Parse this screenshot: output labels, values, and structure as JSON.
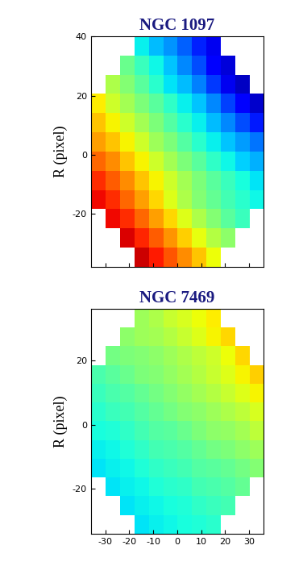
{
  "chart_data": [
    {
      "type": "heatmap",
      "title": "NGC 1097",
      "y_label": "R (pixel)",
      "xlim": [
        -36,
        36
      ],
      "ylim": [
        -38,
        40
      ],
      "xticks": [
        -30,
        -20,
        -10,
        0,
        10,
        20,
        30
      ],
      "yticks": [
        -20,
        0,
        20,
        40
      ],
      "tick_labels": "y",
      "color_range": [
        0,
        10
      ],
      "cells": [
        [
          null,
          null,
          null,
          3.6,
          3.1,
          2.7,
          2.2,
          1.6,
          1.0,
          null,
          null,
          null
        ],
        [
          null,
          null,
          4.8,
          4.2,
          3.7,
          3.2,
          2.6,
          2.0,
          1.2,
          0.8,
          null,
          null
        ],
        [
          null,
          5.6,
          5.1,
          4.6,
          4.0,
          3.5,
          3.1,
          2.5,
          1.8,
          1.0,
          0.6,
          null
        ],
        [
          6.6,
          6.0,
          5.5,
          5.0,
          4.6,
          4.1,
          3.6,
          3.2,
          2.6,
          1.9,
          1.2,
          0.7
        ],
        [
          7.0,
          6.5,
          6.0,
          5.5,
          5.0,
          4.5,
          4.0,
          3.6,
          3.1,
          2.6,
          2.0,
          1.5
        ],
        [
          7.4,
          7.0,
          6.5,
          6.0,
          5.4,
          5.0,
          4.5,
          4.0,
          3.6,
          3.2,
          2.8,
          2.4
        ],
        [
          8.0,
          7.6,
          7.0,
          6.5,
          6.0,
          5.5,
          5.0,
          4.6,
          4.1,
          3.7,
          3.3,
          3.0
        ],
        [
          8.6,
          8.1,
          7.6,
          7.0,
          6.5,
          6.0,
          5.5,
          5.0,
          4.6,
          4.2,
          3.8,
          3.5
        ],
        [
          9.0,
          8.6,
          8.0,
          7.4,
          6.8,
          6.2,
          5.6,
          5.1,
          4.7,
          4.3,
          4.0,
          3.7
        ],
        [
          null,
          9.0,
          8.6,
          8.0,
          7.4,
          6.8,
          6.2,
          5.6,
          5.1,
          4.6,
          4.2,
          null
        ],
        [
          null,
          null,
          9.2,
          8.7,
          8.1,
          7.5,
          6.9,
          6.3,
          5.7,
          5.2,
          null,
          null
        ],
        [
          null,
          null,
          null,
          9.3,
          8.8,
          8.2,
          7.6,
          7.0,
          6.4,
          null,
          null,
          null
        ]
      ]
    },
    {
      "type": "heatmap",
      "title": "NGC 7469",
      "y_label": "R (pixel)",
      "xlim": [
        -36,
        36
      ],
      "ylim": [
        -34,
        36
      ],
      "xticks": [
        -30,
        -20,
        -10,
        0,
        10,
        20,
        30
      ],
      "yticks": [
        -20,
        0,
        20
      ],
      "color_range": [
        0,
        10
      ],
      "cells": [
        [
          null,
          null,
          null,
          5.4,
          5.6,
          5.9,
          6.1,
          6.4,
          6.6,
          null,
          null,
          null
        ],
        [
          null,
          null,
          5.2,
          5.4,
          5.5,
          5.7,
          5.9,
          6.2,
          6.5,
          6.8,
          null,
          null
        ],
        [
          null,
          4.9,
          5.0,
          5.1,
          5.2,
          5.4,
          5.6,
          5.8,
          6.0,
          6.4,
          6.8,
          null
        ],
        [
          4.4,
          4.6,
          4.8,
          5.0,
          5.1,
          5.3,
          5.5,
          5.7,
          5.9,
          6.2,
          6.5,
          6.9
        ],
        [
          4.2,
          4.4,
          4.5,
          4.7,
          4.9,
          5.1,
          5.3,
          5.5,
          5.7,
          5.9,
          6.2,
          6.5
        ],
        [
          4.0,
          4.2,
          4.3,
          4.5,
          4.7,
          4.9,
          5.1,
          5.2,
          5.4,
          5.6,
          5.8,
          6.1
        ],
        [
          3.8,
          3.9,
          4.1,
          4.3,
          4.5,
          4.6,
          4.8,
          5.0,
          5.2,
          5.3,
          5.5,
          5.8
        ],
        [
          3.6,
          3.7,
          3.9,
          4.1,
          4.3,
          4.4,
          4.5,
          4.7,
          4.9,
          5.0,
          5.2,
          5.4
        ],
        [
          3.5,
          3.6,
          3.7,
          3.9,
          4.1,
          4.2,
          4.3,
          4.5,
          4.6,
          4.7,
          4.9,
          5.1
        ],
        [
          null,
          3.5,
          3.6,
          3.7,
          3.9,
          4.0,
          4.1,
          4.3,
          4.4,
          4.5,
          4.7,
          null
        ],
        [
          null,
          null,
          3.5,
          3.6,
          3.7,
          3.8,
          3.9,
          4.1,
          4.2,
          4.3,
          null,
          null
        ],
        [
          null,
          null,
          null,
          3.5,
          3.6,
          3.7,
          3.8,
          3.9,
          4.0,
          null,
          null,
          null
        ]
      ]
    }
  ]
}
